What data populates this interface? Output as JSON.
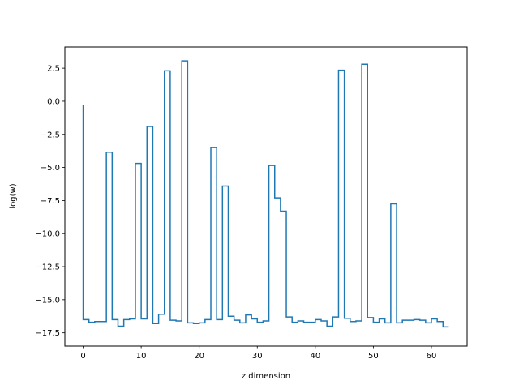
{
  "chart_data": {
    "type": "line",
    "style": "step",
    "title": "",
    "xlabel": "z dimension",
    "ylabel": "log(w)",
    "xlim": [
      -3.15,
      66.15
    ],
    "ylim": [
      -18.5,
      4.1
    ],
    "xticks": [
      0,
      10,
      20,
      30,
      40,
      50,
      60
    ],
    "xtick_labels": [
      "0",
      "10",
      "20",
      "30",
      "40",
      "50",
      "60"
    ],
    "yticks": [
      2.5,
      0.0,
      -2.5,
      -5.0,
      -7.5,
      -10.0,
      -12.5,
      -15.0,
      -17.5
    ],
    "ytick_labels": [
      "2.5",
      "0.0",
      "−2.5",
      "−5.0",
      "−7.5",
      "−10.0",
      "−12.5",
      "−15.0",
      "−17.5"
    ],
    "grid": false,
    "line_color": "#1f77b4",
    "x": [
      0,
      1,
      2,
      3,
      4,
      5,
      6,
      7,
      8,
      9,
      10,
      11,
      12,
      13,
      14,
      15,
      16,
      17,
      18,
      19,
      20,
      21,
      22,
      23,
      24,
      25,
      26,
      27,
      28,
      29,
      30,
      31,
      32,
      33,
      34,
      35,
      36,
      37,
      38,
      39,
      40,
      41,
      42,
      43,
      44,
      45,
      46,
      47,
      48,
      49,
      50,
      51,
      52,
      53,
      54,
      55,
      56,
      57,
      58,
      59,
      60,
      61,
      62,
      63
    ],
    "values": [
      -0.3,
      -16.5,
      -16.7,
      -16.65,
      -16.65,
      -3.85,
      -16.5,
      -17.0,
      -16.5,
      -16.45,
      -4.7,
      -16.45,
      -1.9,
      -16.8,
      -16.1,
      2.3,
      -16.55,
      -16.6,
      3.05,
      -16.75,
      -16.8,
      -16.75,
      -16.5,
      -3.5,
      -16.5,
      -6.4,
      -16.25,
      -16.55,
      -16.75,
      -16.15,
      -16.45,
      -16.7,
      -16.6,
      -4.85,
      -7.3,
      -8.3,
      -16.3,
      -16.7,
      -16.6,
      -16.7,
      -16.7,
      -16.5,
      -16.6,
      -17.0,
      -16.3,
      2.35,
      -16.4,
      -16.65,
      -16.6,
      2.8,
      -16.35,
      -16.7,
      -16.45,
      -16.75,
      -7.75,
      -16.75,
      -16.55,
      -16.55,
      -16.5,
      -16.55,
      -16.75,
      -16.45,
      -16.65,
      -17.05
    ]
  }
}
